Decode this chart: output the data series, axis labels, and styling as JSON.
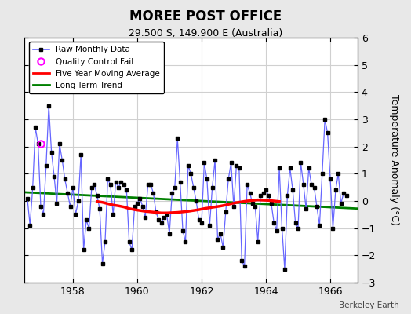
{
  "title": "MOREE POST OFFICE",
  "subtitle": "29.500 S, 149.900 E (Australia)",
  "ylabel": "Temperature Anomaly (°C)",
  "attribution": "Berkeley Earth",
  "fig_bg_color": "#e8e8e8",
  "plot_bg_color": "#ffffff",
  "xlim": [
    1956.5,
    1966.85
  ],
  "ylim": [
    -3,
    6
  ],
  "yticks": [
    -3,
    -2,
    -1,
    0,
    1,
    2,
    3,
    4,
    5,
    6
  ],
  "xticks": [
    1958,
    1960,
    1962,
    1964,
    1966
  ],
  "raw_color": "#6666ff",
  "marker_color": "black",
  "ma_color": "red",
  "trend_color": "green",
  "qc_color": "magenta",
  "raw_x": [
    1956.583,
    1956.667,
    1956.75,
    1956.833,
    1956.917,
    1957.0,
    1957.083,
    1957.167,
    1957.25,
    1957.333,
    1957.417,
    1957.5,
    1957.583,
    1957.667,
    1957.75,
    1957.833,
    1957.917,
    1958.0,
    1958.083,
    1958.167,
    1958.25,
    1958.333,
    1958.417,
    1958.5,
    1958.583,
    1958.667,
    1958.75,
    1958.833,
    1958.917,
    1959.0,
    1959.083,
    1959.167,
    1959.25,
    1959.333,
    1959.417,
    1959.5,
    1959.583,
    1959.667,
    1959.75,
    1959.833,
    1959.917,
    1960.0,
    1960.083,
    1960.167,
    1960.25,
    1960.333,
    1960.417,
    1960.5,
    1960.583,
    1960.667,
    1960.75,
    1960.833,
    1960.917,
    1961.0,
    1961.083,
    1961.167,
    1961.25,
    1961.333,
    1961.417,
    1961.5,
    1961.583,
    1961.667,
    1961.75,
    1961.833,
    1961.917,
    1962.0,
    1962.083,
    1962.167,
    1962.25,
    1962.333,
    1962.417,
    1962.5,
    1962.583,
    1962.667,
    1962.75,
    1962.833,
    1962.917,
    1963.0,
    1963.083,
    1963.167,
    1963.25,
    1963.333,
    1963.417,
    1963.5,
    1963.583,
    1963.667,
    1963.75,
    1963.833,
    1963.917,
    1964.0,
    1964.083,
    1964.167,
    1964.25,
    1964.333,
    1964.417,
    1964.5,
    1964.583,
    1964.667,
    1964.75,
    1964.833,
    1964.917,
    1965.0,
    1965.083,
    1965.167,
    1965.25,
    1965.333,
    1965.417,
    1965.5,
    1965.583,
    1965.667,
    1965.75,
    1965.833,
    1965.917,
    1966.0,
    1966.083,
    1966.167,
    1966.25,
    1966.333,
    1966.417,
    1966.5
  ],
  "raw_y": [
    0.1,
    -0.9,
    0.5,
    2.7,
    2.1,
    -0.2,
    -0.5,
    1.3,
    3.5,
    1.8,
    0.9,
    -0.1,
    2.1,
    1.5,
    0.8,
    0.3,
    -0.2,
    0.5,
    -0.5,
    0.0,
    1.7,
    -1.8,
    -0.7,
    -1.0,
    0.5,
    0.6,
    0.2,
    -0.3,
    -2.3,
    -1.5,
    0.8,
    0.6,
    -0.5,
    0.7,
    0.5,
    0.7,
    0.6,
    0.4,
    -1.5,
    -1.8,
    -0.2,
    -0.1,
    0.1,
    -0.2,
    -0.6,
    0.6,
    0.6,
    0.3,
    -0.4,
    -0.7,
    -0.8,
    -0.6,
    -0.5,
    -1.2,
    0.3,
    0.5,
    2.3,
    0.7,
    -1.1,
    -1.5,
    1.3,
    1.0,
    0.5,
    0.0,
    -0.7,
    -0.8,
    1.4,
    0.8,
    -0.9,
    0.5,
    1.5,
    -1.4,
    -1.2,
    -1.7,
    -0.4,
    0.8,
    1.4,
    -0.2,
    1.3,
    1.2,
    -2.2,
    -2.4,
    0.6,
    0.3,
    -0.1,
    -0.2,
    -1.5,
    0.2,
    0.3,
    0.4,
    0.2,
    -0.1,
    -0.8,
    -1.1,
    1.2,
    -1.0,
    -2.5,
    0.2,
    1.2,
    0.4,
    -0.8,
    -1.0,
    1.4,
    0.6,
    -0.3,
    1.2,
    0.6,
    0.5,
    -0.2,
    -0.9,
    1.0,
    3.0,
    2.5,
    0.8,
    -1.0,
    0.4,
    1.0,
    -0.1,
    0.3,
    0.2
  ],
  "qc_x": [
    1957.0
  ],
  "qc_y": [
    2.1
  ],
  "ma_x": [
    1958.75,
    1958.917,
    1959.083,
    1959.25,
    1959.417,
    1959.583,
    1959.75,
    1959.917,
    1960.083,
    1960.25,
    1960.417,
    1960.583,
    1960.75,
    1960.917,
    1961.083,
    1961.25,
    1961.417,
    1961.583,
    1961.75,
    1961.917,
    1962.083,
    1962.25,
    1962.417,
    1962.583,
    1962.75,
    1962.917,
    1963.083,
    1963.25,
    1963.417,
    1963.583,
    1963.75,
    1963.917,
    1964.083,
    1964.25,
    1964.417
  ],
  "ma_y": [
    -0.02,
    -0.05,
    -0.1,
    -0.15,
    -0.18,
    -0.22,
    -0.28,
    -0.32,
    -0.35,
    -0.38,
    -0.4,
    -0.42,
    -0.44,
    -0.44,
    -0.43,
    -0.42,
    -0.4,
    -0.38,
    -0.35,
    -0.32,
    -0.28,
    -0.25,
    -0.22,
    -0.19,
    -0.15,
    -0.1,
    -0.06,
    -0.03,
    0.0,
    0.02,
    0.04,
    0.03,
    0.02,
    0.0,
    -0.02
  ],
  "trend_x": [
    1956.5,
    1966.85
  ],
  "trend_y": [
    0.32,
    -0.28
  ],
  "grid_color": "#d0d0d0",
  "legend_loc": "upper left"
}
